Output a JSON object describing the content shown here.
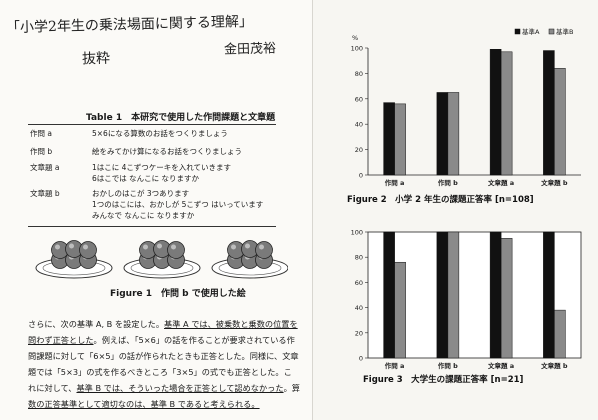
{
  "handwritten": {
    "title": "「小学2年生の乗法場面に関する理解」",
    "author": "金田茂裕",
    "note": "抜粋"
  },
  "table": {
    "caption": "Table 1　本研究で使用した作問課題と文章題",
    "rows": [
      {
        "label": "作問 a",
        "lines": [
          "5×6になる算数のお話をつくりましょう"
        ]
      },
      {
        "label": "作問 b",
        "lines": [
          "絵をみてかけ算になるお話をつくりましょう"
        ]
      },
      {
        "label": "文章題 a",
        "lines": [
          "1はこに 4こずつケーキを入れていきます",
          "6はこでは なんこに なりますか"
        ]
      },
      {
        "label": "文章題 b",
        "lines": [
          "おかしのはこが 3つあります",
          "1つのはこには、おかしが 5こずつ はいっています",
          "みんなで なんこに なりますか"
        ]
      }
    ]
  },
  "figure1": {
    "caption": "Figure 1　作問 b で使用した絵"
  },
  "body_text": {
    "lines": [
      [
        {
          "t": "さらに、次の基準 A, B を設定した。",
          "u": false
        },
        {
          "t": "基準 A では、被乗数と乗数の位置を",
          "u": true
        }
      ],
      [
        {
          "t": "問わず正答とした",
          "u": true
        },
        {
          "t": "。例えば、「5×6」の話を作ることが要求されている作",
          "u": false
        }
      ],
      [
        {
          "t": "問課題に対して「6×5」の話が作られたときも正答とした。同様に、文章",
          "u": false
        }
      ],
      [
        {
          "t": "題では「5×3」の式を作るべきところ「3×5」の式でも正答とした。こ",
          "u": false
        }
      ],
      [
        {
          "t": "れに対して、",
          "u": false
        },
        {
          "t": "基準 B では、そういった場合を正答として認めなかった",
          "u": true
        },
        {
          "t": "。算",
          "u": false
        }
      ],
      [
        {
          "t": "数の正答基準として適切なのは、基準 B であると考えられる。",
          "u": true
        }
      ]
    ]
  },
  "colors": {
    "series_a": "#111111",
    "series_b": "#8a8a8a"
  },
  "chart_data": [
    {
      "type": "bar",
      "title": "Figure 2　小学 2 年生の課題正答率 [n=108]",
      "ylabel": "%",
      "ylim": [
        0,
        100
      ],
      "yticks": [
        0,
        20,
        40,
        60,
        80,
        100
      ],
      "categories": [
        "作問 a",
        "作問 b",
        "文章題 a",
        "文章題 b"
      ],
      "series": [
        {
          "name": "基準A",
          "values": [
            57,
            65,
            99,
            98
          ]
        },
        {
          "name": "基準B",
          "values": [
            56,
            65,
            97,
            84
          ]
        }
      ],
      "legend": "top-right",
      "grid": false
    },
    {
      "type": "bar",
      "title": "Figure 3　大学生の課題正答率 [n=21]",
      "ylabel": "",
      "ylim": [
        0,
        100
      ],
      "yticks": [
        0,
        20,
        40,
        60,
        80,
        100
      ],
      "categories": [
        "作問 a",
        "作問 b",
        "文章題 a",
        "文章題 b"
      ],
      "series": [
        {
          "name": "基準A",
          "values": [
            100,
            100,
            100,
            100
          ]
        },
        {
          "name": "基準B",
          "values": [
            76,
            100,
            95,
            38
          ]
        }
      ],
      "legend": "none",
      "grid": false
    }
  ]
}
